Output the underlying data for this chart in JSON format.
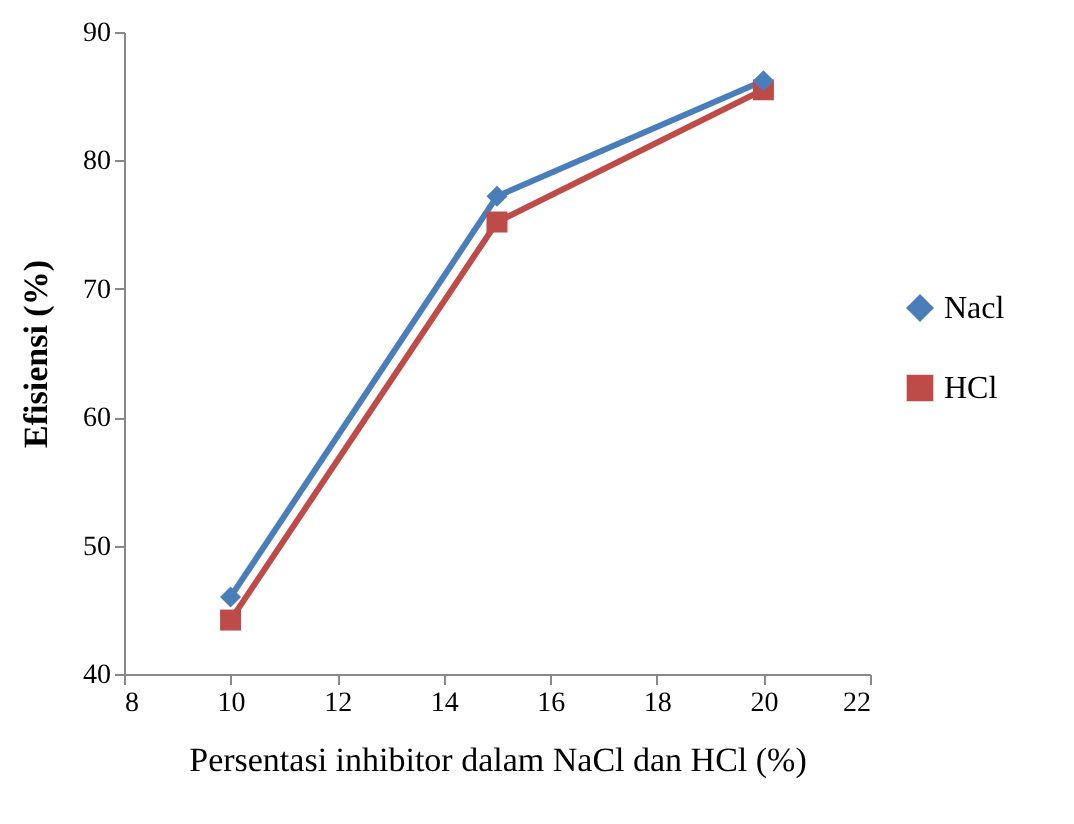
{
  "chart_data": {
    "type": "line",
    "xlabel": "Persentasi inhibitor dalam NaCl dan HCl (%)",
    "ylabel": "Efisiensi (%)",
    "x": [
      10,
      15,
      20
    ],
    "series": [
      {
        "name": "Nacl",
        "color": "#4a7ebb",
        "marker": "diamond",
        "values": [
          46,
          77.2,
          86.2
        ]
      },
      {
        "name": "HCl",
        "color": "#be4b48",
        "marker": "square",
        "values": [
          44.2,
          75.2,
          85.5
        ]
      }
    ],
    "xlim": [
      8,
      22
    ],
    "xticks": [
      8,
      10,
      12,
      14,
      16,
      18,
      20,
      22
    ],
    "ylim": [
      40,
      90
    ],
    "yticks": [
      40,
      50,
      60,
      70,
      80,
      90
    ],
    "grid": false,
    "legend": "right"
  }
}
